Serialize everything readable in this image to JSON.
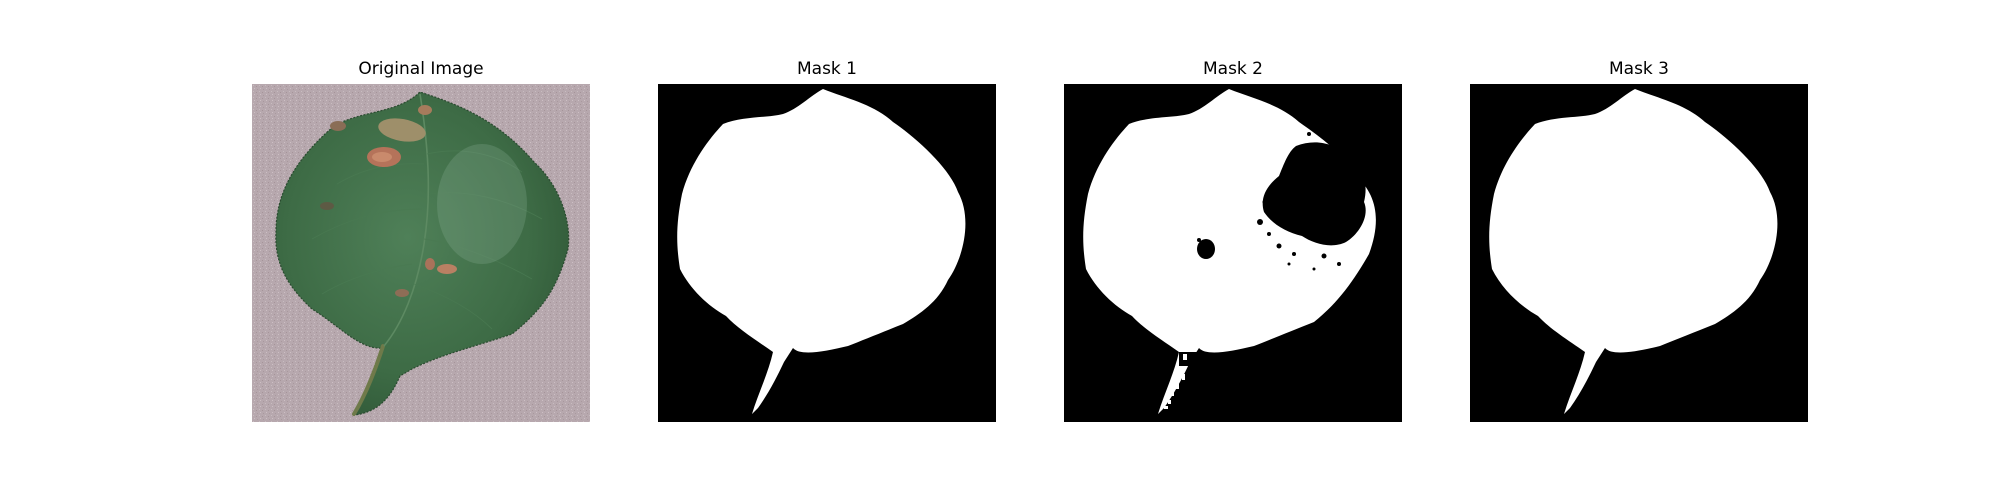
{
  "figure": {
    "panels": [
      {
        "title": "Original Image",
        "kind": "photo",
        "icon": "leaf-photo"
      },
      {
        "title": "Mask 1",
        "kind": "mask",
        "icon": "leaf-mask"
      },
      {
        "title": "Mask 2",
        "kind": "mask",
        "icon": "leaf-mask-with-holes"
      },
      {
        "title": "Mask 3",
        "kind": "mask",
        "icon": "leaf-mask"
      }
    ],
    "colors": {
      "background": "#ffffff",
      "mask_background": "#000000",
      "mask_foreground": "#ffffff",
      "photo_background": "#b8a8ad",
      "leaf_green": "#3f7048",
      "lesion_brown": "#b07a5a"
    }
  }
}
